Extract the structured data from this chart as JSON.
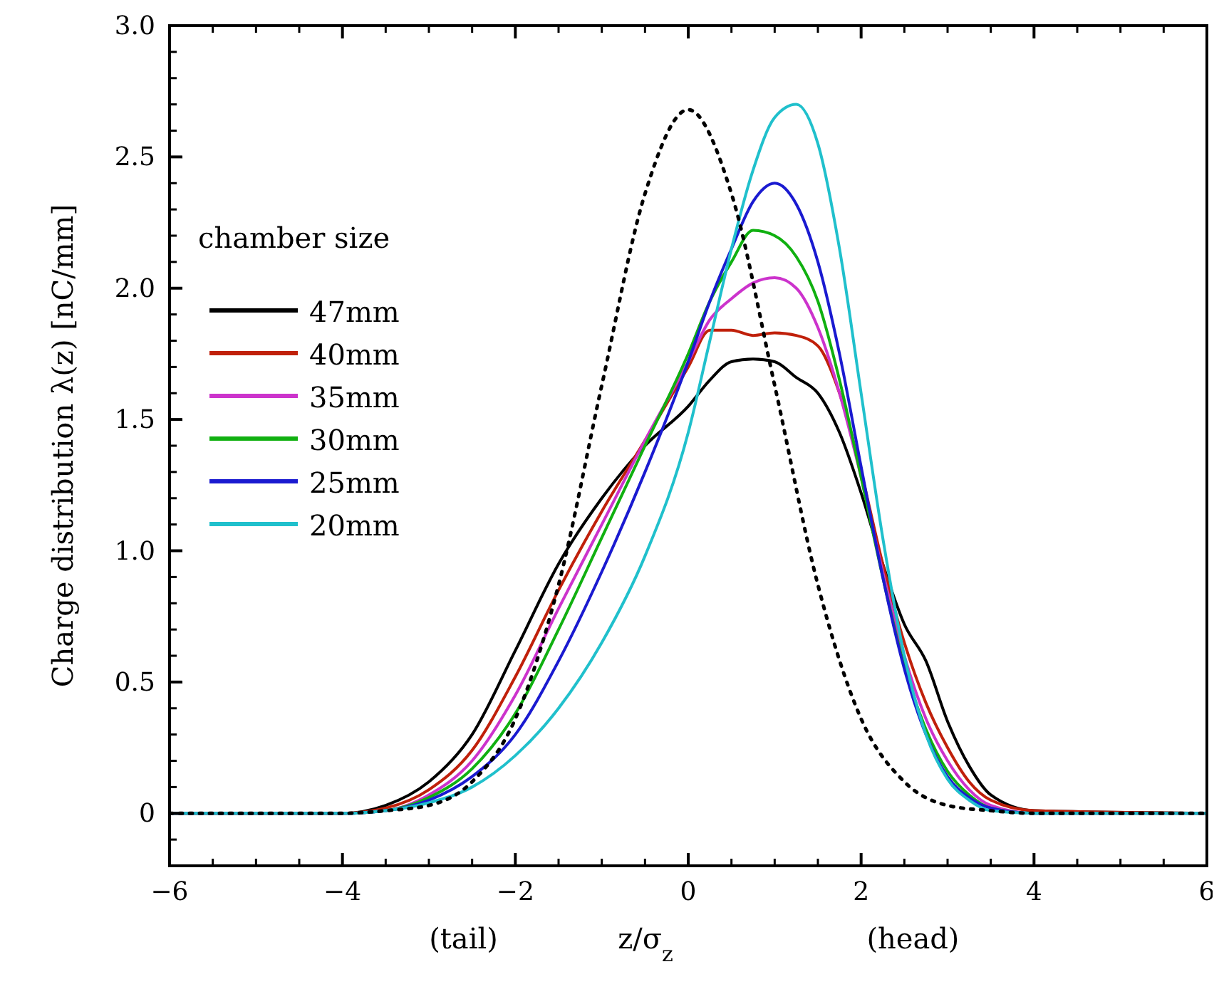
{
  "chart_data": {
    "type": "line",
    "xlabel": "z/σ$_{z}$",
    "ylabel": "Charge distribution  λ(z)  [nC/mm]",
    "legend_title": "chamber size",
    "legend": "top left",
    "annotations": [
      "(tail)",
      "(head)"
    ],
    "x": [
      -6,
      -4,
      -3.5,
      -3,
      -2.5,
      -2,
      -1.5,
      -1,
      -0.5,
      0,
      0.25,
      0.5,
      0.75,
      1,
      1.25,
      1.5,
      1.75,
      2,
      2.25,
      2.5,
      2.75,
      3,
      3.25,
      3.5,
      4,
      6
    ],
    "xlim": [
      -6,
      6
    ],
    "xticks": [
      -6,
      {
        "value": -5.5,
        "label": null
      },
      {
        "value": -5,
        "label": null
      },
      {
        "value": -4.5,
        "label": null
      },
      -4,
      {
        "value": -3.5,
        "label": null
      },
      {
        "value": -3,
        "label": null
      },
      {
        "value": -2.5,
        "label": null
      },
      -2,
      {
        "value": -1.5,
        "label": null
      },
      {
        "value": -1,
        "label": null
      },
      {
        "value": -0.5,
        "label": null
      },
      0,
      {
        "value": 0.5,
        "label": null
      },
      {
        "value": 1,
        "label": null
      },
      {
        "value": 1.5,
        "label": null
      },
      2,
      {
        "value": 2.5,
        "label": null
      },
      {
        "value": 3,
        "label": null
      },
      {
        "value": 3.5,
        "label": null
      },
      4,
      {
        "value": 4.5,
        "label": null
      },
      {
        "value": 5,
        "label": null
      },
      {
        "value": 5.5,
        "label": null
      },
      6
    ],
    "ylim": [
      -0.2,
      3.0
    ],
    "yticks": [
      {
        "value": -0.1,
        "label": null
      },
      0,
      {
        "value": 0.1,
        "label": null
      },
      {
        "value": 0.2,
        "label": null
      },
      {
        "value": 0.3,
        "label": null
      },
      {
        "value": 0.4,
        "label": null
      },
      0.5,
      {
        "value": 0.6,
        "label": null
      },
      {
        "value": 0.7,
        "label": null
      },
      {
        "value": 0.8,
        "label": null
      },
      {
        "value": 0.9,
        "label": null
      },
      {
        "value": 1,
        "label": "1.0"
      },
      {
        "value": 1.1,
        "label": null
      },
      {
        "value": 1.2,
        "label": null
      },
      {
        "value": 1.3,
        "label": null
      },
      {
        "value": 1.4,
        "label": null
      },
      1.5,
      {
        "value": 1.6,
        "label": null
      },
      {
        "value": 1.7,
        "label": null
      },
      {
        "value": 1.8,
        "label": null
      },
      {
        "value": 1.9,
        "label": null
      },
      {
        "value": 2,
        "label": "2.0"
      },
      {
        "value": 2.1,
        "label": null
      },
      {
        "value": 2.2,
        "label": null
      },
      {
        "value": 2.3,
        "label": null
      },
      {
        "value": 2.4,
        "label": null
      },
      2.5,
      {
        "value": 2.6,
        "label": null
      },
      {
        "value": 2.7,
        "label": null
      },
      {
        "value": 2.8,
        "label": null
      },
      {
        "value": 2.9,
        "label": null
      },
      {
        "value": 3,
        "label": "3.0"
      }
    ],
    "grid": false,
    "marker": "none",
    "line_style": "solid",
    "series": [
      {
        "name": "47mm",
        "color": "#000000",
        "values": [
          0,
          0,
          0.03,
          0.12,
          0.3,
          0.62,
          0.95,
          1.2,
          1.4,
          1.55,
          1.65,
          1.72,
          1.73,
          1.72,
          1.66,
          1.6,
          1.45,
          1.22,
          0.95,
          0.72,
          0.58,
          0.35,
          0.18,
          0.07,
          0.01,
          0
        ]
      },
      {
        "name": "40mm",
        "color": "#c0200a",
        "values": [
          0,
          0,
          0.02,
          0.09,
          0.24,
          0.52,
          0.85,
          1.15,
          1.42,
          1.7,
          1.84,
          1.84,
          1.82,
          1.83,
          1.82,
          1.78,
          1.6,
          1.3,
          0.95,
          0.65,
          0.42,
          0.25,
          0.12,
          0.05,
          0.01,
          0
        ]
      },
      {
        "name": "35mm",
        "color": "#cc33cc",
        "values": [
          0,
          0,
          0.01,
          0.07,
          0.2,
          0.45,
          0.78,
          1.1,
          1.42,
          1.72,
          1.88,
          1.96,
          2.02,
          2.04,
          2.0,
          1.85,
          1.6,
          1.28,
          0.92,
          0.6,
          0.36,
          0.2,
          0.09,
          0.03,
          0,
          0
        ]
      },
      {
        "name": "30mm",
        "color": "#10b010",
        "values": [
          0,
          0,
          0.01,
          0.06,
          0.17,
          0.38,
          0.7,
          1.05,
          1.4,
          1.75,
          1.95,
          2.1,
          2.22,
          2.2,
          2.12,
          1.95,
          1.65,
          1.28,
          0.9,
          0.56,
          0.32,
          0.16,
          0.07,
          0.02,
          0,
          0
        ]
      },
      {
        "name": "25mm",
        "color": "#1a1ad0",
        "values": [
          0,
          0,
          0.01,
          0.05,
          0.14,
          0.3,
          0.58,
          0.92,
          1.3,
          1.72,
          1.95,
          2.15,
          2.33,
          2.4,
          2.32,
          2.1,
          1.75,
          1.32,
          0.9,
          0.55,
          0.3,
          0.14,
          0.06,
          0.02,
          0,
          0
        ]
      },
      {
        "name": "20mm",
        "color": "#20c0cc",
        "values": [
          0,
          0,
          0.01,
          0.04,
          0.1,
          0.22,
          0.4,
          0.65,
          0.98,
          1.45,
          1.8,
          2.15,
          2.45,
          2.65,
          2.7,
          2.55,
          2.15,
          1.6,
          1.05,
          0.6,
          0.3,
          0.13,
          0.05,
          0.01,
          0,
          0
        ]
      },
      {
        "color": "#000000",
        "line_style": "dotted",
        "x": [
          -6,
          -4,
          -3.5,
          -3,
          -2.5,
          -2,
          -1.5,
          -1,
          -0.5,
          0,
          0.5,
          1,
          1.5,
          2,
          2.5,
          3,
          3.5,
          4,
          6
        ],
        "values": [
          0,
          0,
          0.01,
          0.03,
          0.12,
          0.36,
          0.87,
          1.63,
          2.36,
          2.68,
          2.36,
          1.63,
          0.87,
          0.36,
          0.12,
          0.03,
          0.01,
          0,
          0
        ]
      }
    ]
  }
}
